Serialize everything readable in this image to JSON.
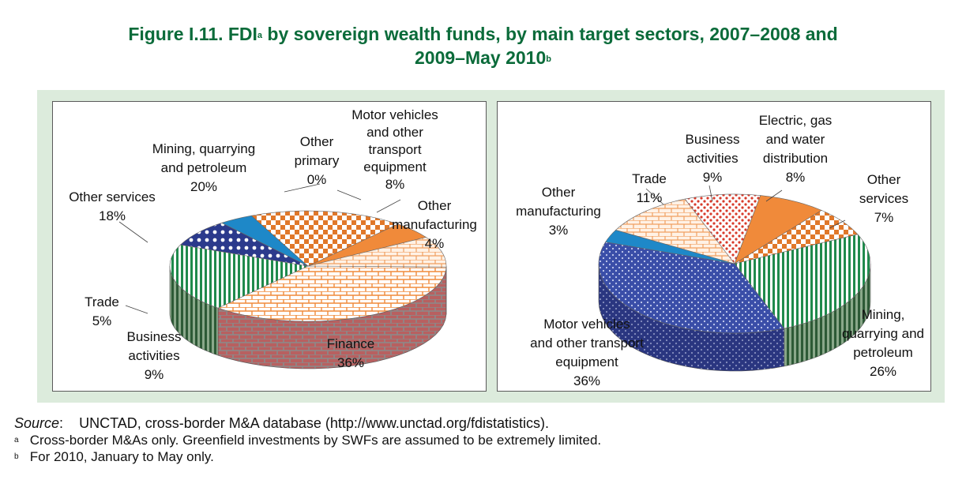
{
  "title": {
    "line1_pre": "Figure I.11. FDI",
    "line1_sup": "a",
    "line1_post": " by sovereign wealth funds, by main target sectors, 2007–2008 and",
    "line2": "2009–May 2010",
    "line2_sup": "b"
  },
  "colors": {
    "title": "#0b6b3a",
    "frame_bg": "#dcebdc",
    "finance": "#f08a3a",
    "mining": "#1f8a4c",
    "motor": "#2b3a8c",
    "other_manufacturing": "#1e88c8",
    "trade": "#f08a3a",
    "business": "#d83a2a",
    "other_services": "#e0782a",
    "electric": "#e8781e"
  },
  "chart_data": [
    {
      "type": "pie",
      "title": "2007–2008",
      "slices": [
        {
          "label": "Finance",
          "value_label": "36%",
          "value": 36,
          "pattern": "brick"
        },
        {
          "label": "Mining, quarrying and petroleum",
          "value_label": "20%",
          "value": 20,
          "pattern": "vertical-stripes-green"
        },
        {
          "label": "Other primary",
          "value_label": "0%",
          "value": 0,
          "pattern": "none"
        },
        {
          "label": "Motor vehicles and other transport equipment",
          "value_label": "8%",
          "value": 8,
          "pattern": "navy-dots"
        },
        {
          "label": "Other manufacturing",
          "value_label": "4%",
          "value": 4,
          "pattern": "solid-blue"
        },
        {
          "label": "Other services",
          "value_label": "18%",
          "value": 18,
          "pattern": "orange-checks"
        },
        {
          "label": "Trade",
          "value_label": "5%",
          "value": 5,
          "pattern": "solid-orange"
        },
        {
          "label": "Business activities",
          "value_label": "9%",
          "value": 9,
          "pattern": "light-brick"
        }
      ]
    },
    {
      "type": "pie",
      "title": "2009–May 2010",
      "slices": [
        {
          "label": "Mining, quarrying and petroleum",
          "value_label": "26%",
          "value": 26,
          "pattern": "vertical-stripes-green"
        },
        {
          "label": "Motor vehicles and other transport equipment",
          "value_label": "36%",
          "value": 36,
          "pattern": "navy-dots"
        },
        {
          "label": "Other manufacturing",
          "value_label": "3%",
          "value": 3,
          "pattern": "solid-blue"
        },
        {
          "label": "Trade",
          "value_label": "11%",
          "value": 11,
          "pattern": "light-brick"
        },
        {
          "label": "Business activities",
          "value_label": "9%",
          "value": 9,
          "pattern": "red-dots"
        },
        {
          "label": "Electric, gas and water distribution",
          "value_label": "8%",
          "value": 8,
          "pattern": "solid-orange"
        },
        {
          "label": "Other services",
          "value_label": "7%",
          "value": 7,
          "pattern": "orange-checks"
        }
      ]
    }
  ],
  "labels_left": {
    "mining": [
      "Mining, quarrying",
      "and petroleum",
      "20%"
    ],
    "other_primary": [
      "Other",
      "primary",
      "0%"
    ],
    "motor": [
      "Motor vehicles",
      "and other",
      "transport",
      "equipment",
      "8%"
    ],
    "other_manufacturing": [
      "Other",
      "manufacturing",
      "4%"
    ],
    "other_services": [
      "Other services",
      "18%"
    ],
    "trade": [
      "Trade",
      "5%"
    ],
    "business": [
      "Business",
      "activities",
      "9%"
    ],
    "finance": [
      "Finance",
      "36%"
    ]
  },
  "labels_right": {
    "electric": [
      "Electric, gas",
      "and water",
      "distribution",
      "8%"
    ],
    "business": [
      "Business",
      "activities",
      "9%"
    ],
    "trade": [
      "Trade",
      "11%"
    ],
    "other_services": [
      "Other",
      "services",
      "7%"
    ],
    "other_manufacturing": [
      "Other",
      "manufacturing",
      "3%"
    ],
    "motor": [
      "Motor vehicles",
      "and other transport",
      "equipment",
      "36%"
    ],
    "mining": [
      "Mining,",
      "quarrying and",
      "petroleum",
      "26%"
    ]
  },
  "notes": {
    "source_label": "Source",
    "source_colon": ":",
    "source_text": "UNCTAD, cross-border M&A database (http://www.unctad.org/fdistatistics).",
    "fn_a_mark": "a",
    "fn_a_text": "Cross-border M&As only. Greenfield investments by SWFs are assumed to be extremely limited.",
    "fn_b_mark": "b",
    "fn_b_text": "For 2010, January to May only."
  }
}
